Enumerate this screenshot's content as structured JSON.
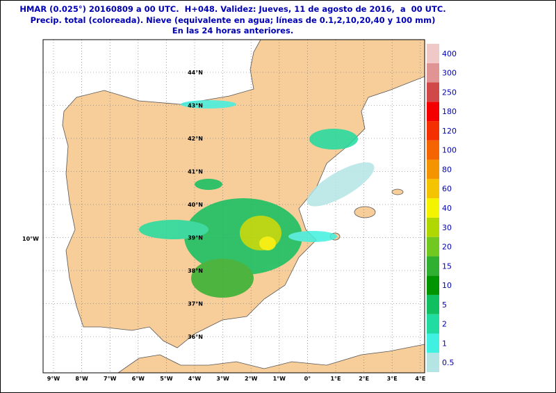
{
  "header": {
    "lines": [
      "HMAR (0.025°) 20160809 a 00 UTC.  H+048. Validez: Jueves, 11 de agosto de 2016,  a  00 UTC.",
      "Precip. total (coloreada). Nieve (equivalente en agua; líneas de 0.1,2,10,20,40 y 100 mm)",
      "En las 24 horas anteriores."
    ]
  },
  "map": {
    "left_label": "10°W",
    "latitude_labels": [
      "44°N",
      "43°N",
      "42°N",
      "41°N",
      "40°N",
      "39°N",
      "38°N",
      "37°N",
      "36°N"
    ],
    "longitude_labels": [
      "9°W",
      "8°W",
      "7°W",
      "6°W",
      "5°W",
      "4°W",
      "3°W",
      "2°W",
      "1°W",
      "0°",
      "1°E",
      "2°E",
      "3°E",
      "4°E"
    ]
  },
  "colorbar": {
    "items": [
      {
        "value": 0.5,
        "color": "#b4e4e4"
      },
      {
        "value": 1,
        "color": "#40f0e0"
      },
      {
        "value": 2,
        "color": "#20dca0"
      },
      {
        "value": 5,
        "color": "#10c060"
      },
      {
        "value": 10,
        "color": "#009400"
      },
      {
        "value": 15,
        "color": "#30b030"
      },
      {
        "value": 20,
        "color": "#70c820"
      },
      {
        "value": 30,
        "color": "#b0d800"
      },
      {
        "value": 40,
        "color": "#f4f400"
      },
      {
        "value": 60,
        "color": "#f4c400"
      },
      {
        "value": 80,
        "color": "#f49400"
      },
      {
        "value": 100,
        "color": "#f46400"
      },
      {
        "value": 120,
        "color": "#f43000"
      },
      {
        "value": 180,
        "color": "#f40000"
      },
      {
        "value": 250,
        "color": "#d04848"
      },
      {
        "value": 300,
        "color": "#e09494"
      },
      {
        "value": 400,
        "color": "#f0c8c8"
      }
    ]
  }
}
